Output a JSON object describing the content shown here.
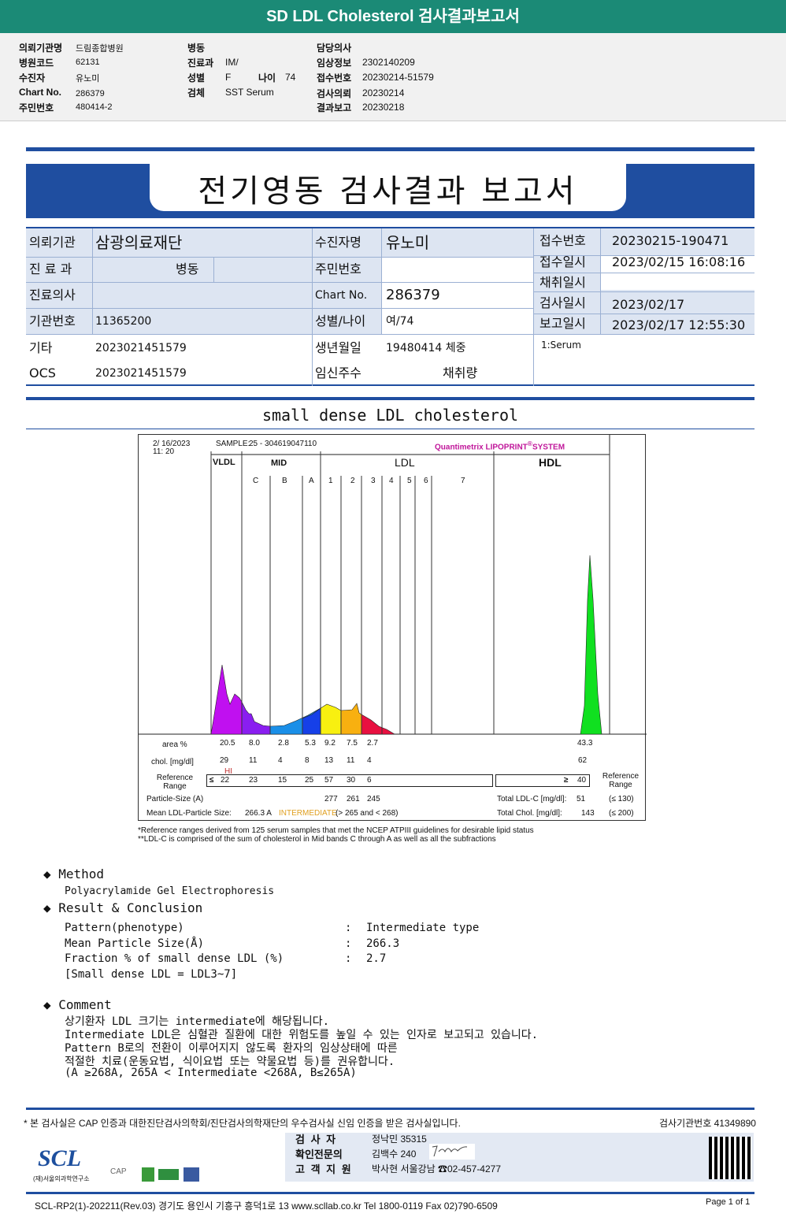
{
  "header": {
    "title": "SD LDL Cholesterol 검사결과보고서"
  },
  "info": {
    "col1": [
      {
        "label": "의뢰기관명",
        "value": "드림종합병원"
      },
      {
        "label": "병원코드",
        "value": "62131"
      },
      {
        "label": "수진자",
        "value": "유노미"
      },
      {
        "label": "Chart No.",
        "value": "286379"
      },
      {
        "label": "주민번호",
        "value": "480414-2"
      }
    ],
    "col2": [
      {
        "label": "병동",
        "value": ""
      },
      {
        "label": "진료과",
        "value": "IM/"
      },
      {
        "label": "성별",
        "value": "F"
      },
      {
        "label": "검체",
        "value": "SST Serum"
      }
    ],
    "age_label": "나이",
    "age_value": "74",
    "col3": [
      {
        "label": "담당의사",
        "value": ""
      },
      {
        "label": "임상정보",
        "value": "2302140209"
      },
      {
        "label": "접수번호",
        "value": "20230214-51579"
      },
      {
        "label": "검사의뢰",
        "value": "20230214"
      },
      {
        "label": "결과보고",
        "value": "20230218"
      }
    ]
  },
  "report": {
    "title": "전기영동 검사결과 보고서",
    "left": [
      {
        "label": "의뢰기관",
        "value": "삼광의료재단"
      },
      {
        "label": "진 료 과",
        "value": "병동"
      },
      {
        "label": "진료의사",
        "value": ""
      },
      {
        "label": "기관번호",
        "value": "11365200"
      },
      {
        "label": "기타",
        "value": "2023021451579"
      },
      {
        "label": "OCS",
        "value": "2023021451579"
      }
    ],
    "mid": [
      {
        "label": "수진자명",
        "value": "유노미"
      },
      {
        "label": "주민번호",
        "value": ""
      },
      {
        "label": "Chart No.",
        "value": "286379"
      },
      {
        "label": "성별/나이",
        "value": "여/74"
      },
      {
        "label": "생년월일",
        "value": "19480414 체중"
      },
      {
        "label": "임신주수",
        "value": "채취량"
      }
    ],
    "right": [
      {
        "label": "접수번호",
        "value": "20230215-190471"
      },
      {
        "label": "접수일시",
        "value": "2023/02/15 16:08:16"
      },
      {
        "label": "채취일시",
        "value": ""
      },
      {
        "label": "검사일시",
        "value": "2023/02/17"
      },
      {
        "label": "보고일시",
        "value": "2023/02/17 12:55:30"
      }
    ],
    "specimen": "1:Serum"
  },
  "section_title": "small dense LDL cholesterol",
  "chart_data": {
    "type": "area",
    "date": "2/ 16/2023",
    "time": "11: 20",
    "sample_label": "SAMPLE:",
    "sample": "25 - 304619047110",
    "brand": "Quantimetrix LIPOPRINT",
    "brand2": "SYSTEM",
    "brand_mark": "®",
    "groups": [
      "VLDL",
      "MID",
      "LDL",
      "HDL"
    ],
    "bands": [
      "C",
      "B",
      "A",
      "1",
      "2",
      "3",
      "4",
      "5",
      "6",
      "7"
    ],
    "rows": {
      "area_label": "area %",
      "area": [
        "20.5",
        "8.0",
        "2.8",
        "5.3",
        "9.2",
        "7.5",
        "2.7"
      ],
      "hdl_area": "43.3",
      "chol_label": "chol. [mg/dl]",
      "chol": [
        "29",
        "11",
        "4",
        "8",
        "13",
        "11",
        "4"
      ],
      "hdl_chol": "62",
      "flag": "HI",
      "ref_label": "Reference Range",
      "ref_le": "≤",
      "ref": [
        "22",
        "23",
        "15",
        "25",
        "57",
        "30",
        "6"
      ],
      "hdl_ref_ge": "≥",
      "hdl_ref": "40",
      "ref_label_right": "Reference Range",
      "size_label": "Particle-Size (A)",
      "sizes": [
        "277",
        "261",
        "245"
      ],
      "mean_label": "Mean LDL-Particle Size:",
      "mean_value": "266.3 A",
      "mean_class": "INTERMEDIATE",
      "mean_range": "(> 265 and < 268)",
      "ldlc_label": "Total LDL-C [mg/dl]:",
      "ldlc": "51",
      "ldlc_ref": "(≤ 130)",
      "tchol_label": "Total Chol. [mg/dl]:",
      "tchol": "143",
      "tchol_ref": "(≤ 200)"
    },
    "footnotes": [
      "*Reference ranges derived from 125 serum samples that met the NCEP ATPIII guidelines for desirable lipid status",
      "**LDL-C is comprised of the sum of cholesterol in Mid bands C through A as well as all the subfractions"
    ]
  },
  "method": {
    "title": "Method",
    "text": "Polyacrylamide Gel Electrophoresis"
  },
  "result": {
    "title": "Result & Conclusion",
    "rows": [
      {
        "label": "Pattern(phenotype)",
        "value": "Intermediate type"
      },
      {
        "label": "Mean Particle Size(Å)",
        "value": "266.3"
      },
      {
        "label": "Fraction % of small dense LDL (%)",
        "value": "2.7"
      }
    ],
    "sep": ":",
    "note": "[Small dense LDL = LDL3~7]"
  },
  "comment": {
    "title": "Comment",
    "lines": [
      "상기환자 LDL 크기는 intermediate에 해당됩니다.",
      "Intermediate LDL은 심혈관 질환에 대한 위험도를 높일 수 있는 인자로 보고되고 있습니다.",
      "Pattern B로의 전환이 이루어지지 않도록 환자의 임상상태에 따른",
      "적절한 치료(운동요법, 식이요법 또는 약물요법 등)를 권유합니다.",
      "(A ≥268A, 265A < Intermediate <268A, B≤265A)"
    ]
  },
  "footer": {
    "cert": "* 본 검사실은 CAP 인증과 대한진단검사의학회/진단검사의학재단의 우수검사실 신임 인증을 받은 검사실입니다.",
    "inst_no": "검사기관번호 41349890",
    "staff": [
      {
        "label": "검 사 자",
        "value": "정낙민 35315"
      },
      {
        "label": "확인전문의",
        "value": "김백수 240"
      },
      {
        "label": "고 객 지 원",
        "value": "박사현 서울강남 ☎02-457-4277"
      }
    ],
    "logo": "SCL",
    "logo_sub": "(재)서울의과학연구소",
    "cap": "CAP",
    "address": "SCL-RP2(1)-202211(Rev.03) 경기도 용인시 기흥구 흥덕1로 13  www.scllab.co.kr  Tel 1800-0119   Fax 02)790-6509",
    "page": "Page 1 of 1"
  }
}
